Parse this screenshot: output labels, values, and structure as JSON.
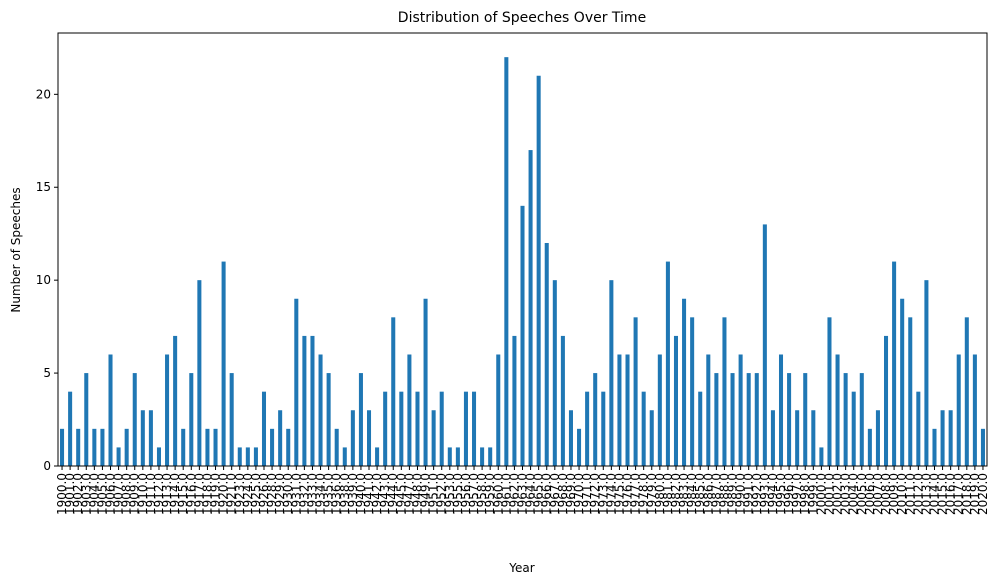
{
  "chart_data": {
    "type": "bar",
    "title": "Distribution of Speeches Over Time",
    "x_label": "Year",
    "y_label": "Number of Speeches",
    "categories": [
      "1900.0",
      "1901.0",
      "1902.0",
      "1903.0",
      "1904.0",
      "1905.0",
      "1906.0",
      "1907.0",
      "1908.0",
      "1909.0",
      "1910.0",
      "1911.0",
      "1912.0",
      "1913.0",
      "1914.0",
      "1915.0",
      "1916.0",
      "1917.0",
      "1918.0",
      "1919.0",
      "1920.0",
      "1921.0",
      "1923.0",
      "1924.0",
      "1925.0",
      "1926.0",
      "1928.0",
      "1929.0",
      "1930.0",
      "1931.0",
      "1932.0",
      "1933.0",
      "1934.0",
      "1935.0",
      "1936.0",
      "1938.0",
      "1939.0",
      "1940.0",
      "1941.0",
      "1942.0",
      "1943.0",
      "1944.0",
      "1945.0",
      "1947.0",
      "1948.0",
      "1949.0",
      "1951.0",
      "1952.0",
      "1953.0",
      "1955.0",
      "1956.0",
      "1957.0",
      "1958.0",
      "1959.0",
      "1960.0",
      "1961.0",
      "1962.0",
      "1963.0",
      "1964.0",
      "1965.0",
      "1966.0",
      "1967.0",
      "1968.0",
      "1969.0",
      "1970.0",
      "1971.0",
      "1972.0",
      "1973.0",
      "1974.0",
      "1975.0",
      "1976.0",
      "1977.0",
      "1978.0",
      "1979.0",
      "1980.0",
      "1981.0",
      "1982.0",
      "1983.0",
      "1984.0",
      "1985.0",
      "1986.0",
      "1987.0",
      "1988.0",
      "1989.0",
      "1990.0",
      "1991.0",
      "1992.0",
      "1993.0",
      "1994.0",
      "1995.0",
      "1996.0",
      "1997.0",
      "1998.0",
      "1999.0",
      "2000.0",
      "2001.0",
      "2002.0",
      "2003.0",
      "2004.0",
      "2005.0",
      "2006.0",
      "2007.0",
      "2008.0",
      "2009.0",
      "2010.0",
      "2011.0",
      "2012.0",
      "2013.0",
      "2014.0",
      "2015.0",
      "2016.0",
      "2017.0",
      "2018.0",
      "2019.0",
      "2020.0"
    ],
    "values": [
      2,
      4,
      2,
      5,
      2,
      2,
      6,
      1,
      2,
      5,
      3,
      3,
      1,
      6,
      7,
      2,
      5,
      10,
      2,
      2,
      11,
      5,
      1,
      1,
      1,
      4,
      2,
      3,
      2,
      9,
      7,
      7,
      6,
      5,
      2,
      1,
      3,
      5,
      3,
      1,
      4,
      8,
      4,
      6,
      4,
      9,
      3,
      4,
      1,
      1,
      4,
      4,
      1,
      1,
      6,
      22,
      7,
      14,
      17,
      21,
      12,
      10,
      7,
      3,
      2,
      4,
      5,
      4,
      10,
      6,
      6,
      8,
      4,
      3,
      6,
      11,
      7,
      9,
      8,
      4,
      6,
      5,
      8,
      5,
      6,
      5,
      5,
      13,
      3,
      6,
      5,
      3,
      5,
      3,
      1,
      8,
      6,
      5,
      4,
      5,
      2,
      3,
      7,
      11,
      9,
      8,
      4,
      10,
      2,
      3,
      3,
      6,
      8,
      6,
      2
    ],
    "color": "#1f77b4",
    "ylim": [
      0,
      23.3
    ],
    "yticks": [
      0,
      5,
      10,
      15,
      20
    ],
    "grid": false
  }
}
